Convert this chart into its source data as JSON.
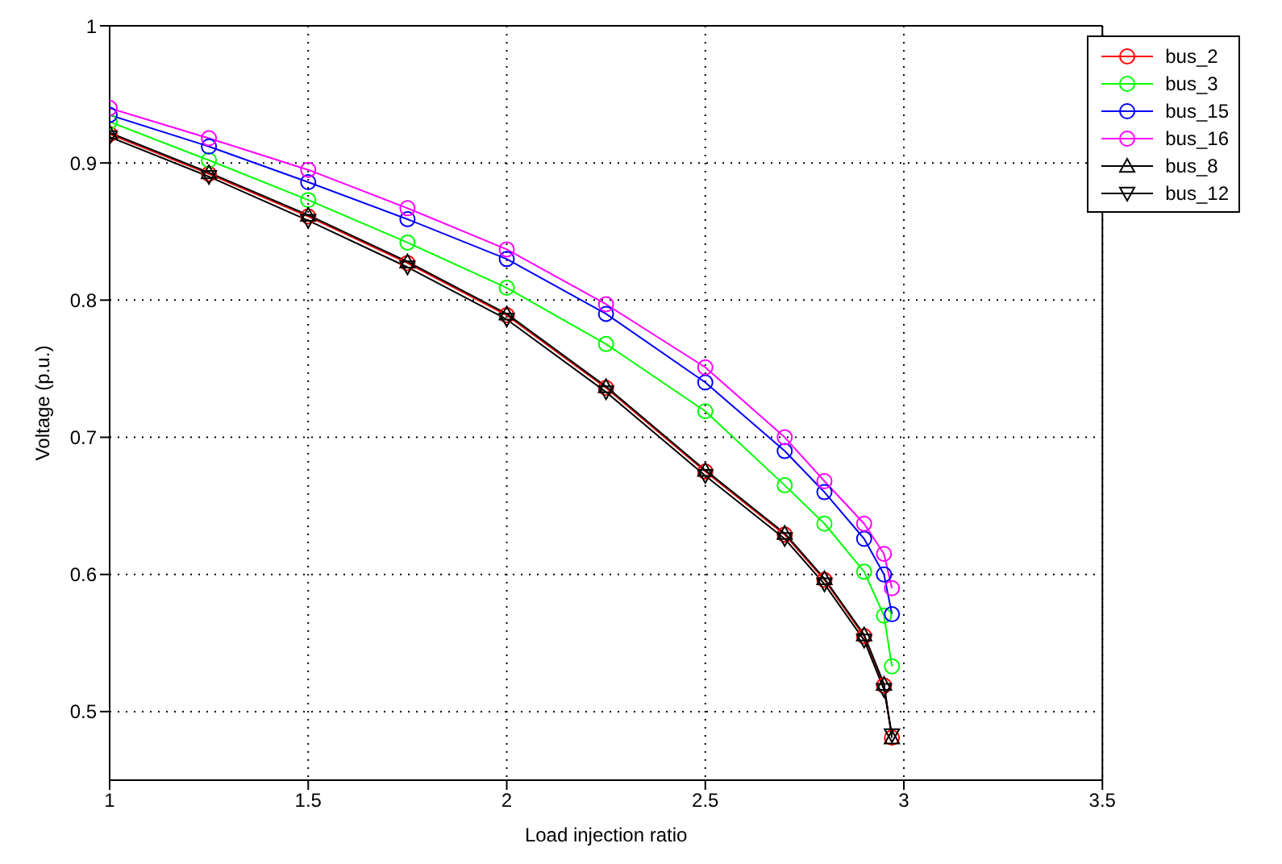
{
  "chart_data": {
    "type": "line",
    "xlabel": "Load injection ratio",
    "ylabel": "Voltage (p.u.)",
    "x": [
      1,
      1.25,
      1.5,
      1.75,
      2,
      2.25,
      2.5,
      2.7,
      2.8,
      2.9,
      2.95,
      2.97
    ],
    "series": [
      {
        "name": "bus_2",
        "color": "#ff0000",
        "marker": "circle",
        "values": [
          0.921,
          0.892,
          0.861,
          0.827,
          0.789,
          0.736,
          0.675,
          0.629,
          0.596,
          0.555,
          0.519,
          0.481
        ]
      },
      {
        "name": "bus_3",
        "color": "#00ff00",
        "marker": "circle",
        "values": [
          0.93,
          0.902,
          0.873,
          0.842,
          0.809,
          0.768,
          0.719,
          0.665,
          0.637,
          0.602,
          0.57,
          0.533
        ]
      },
      {
        "name": "bus_15",
        "color": "#0000ff",
        "marker": "circle",
        "values": [
          0.935,
          0.912,
          0.886,
          0.859,
          0.83,
          0.79,
          0.74,
          0.69,
          0.66,
          0.626,
          0.6,
          0.571
        ]
      },
      {
        "name": "bus_16",
        "color": "#ff00ff",
        "marker": "circle",
        "values": [
          0.94,
          0.918,
          0.895,
          0.867,
          0.837,
          0.797,
          0.751,
          0.7,
          0.668,
          0.637,
          0.615,
          0.59
        ]
      },
      {
        "name": "bus_8",
        "color": "#000000",
        "marker": "triangle",
        "values": [
          0.922,
          0.893,
          0.862,
          0.828,
          0.79,
          0.737,
          0.676,
          0.63,
          0.597,
          0.556,
          0.52,
          0.481
        ]
      },
      {
        "name": "bus_12",
        "color": "#000000",
        "marker": "triangle-down",
        "values": [
          0.919,
          0.89,
          0.858,
          0.824,
          0.786,
          0.733,
          0.672,
          0.626,
          0.593,
          0.552,
          0.516,
          0.483
        ]
      }
    ],
    "xlim": [
      1,
      3.5
    ],
    "xticks": [
      1,
      1.5,
      2,
      2.5,
      3,
      3.5
    ],
    "ylim": [
      0.45,
      1
    ],
    "yticks": [
      0.5,
      0.6,
      0.7,
      0.8,
      0.9,
      1
    ],
    "grid": true,
    "legend": "top right",
    "line_style": "solid"
  }
}
